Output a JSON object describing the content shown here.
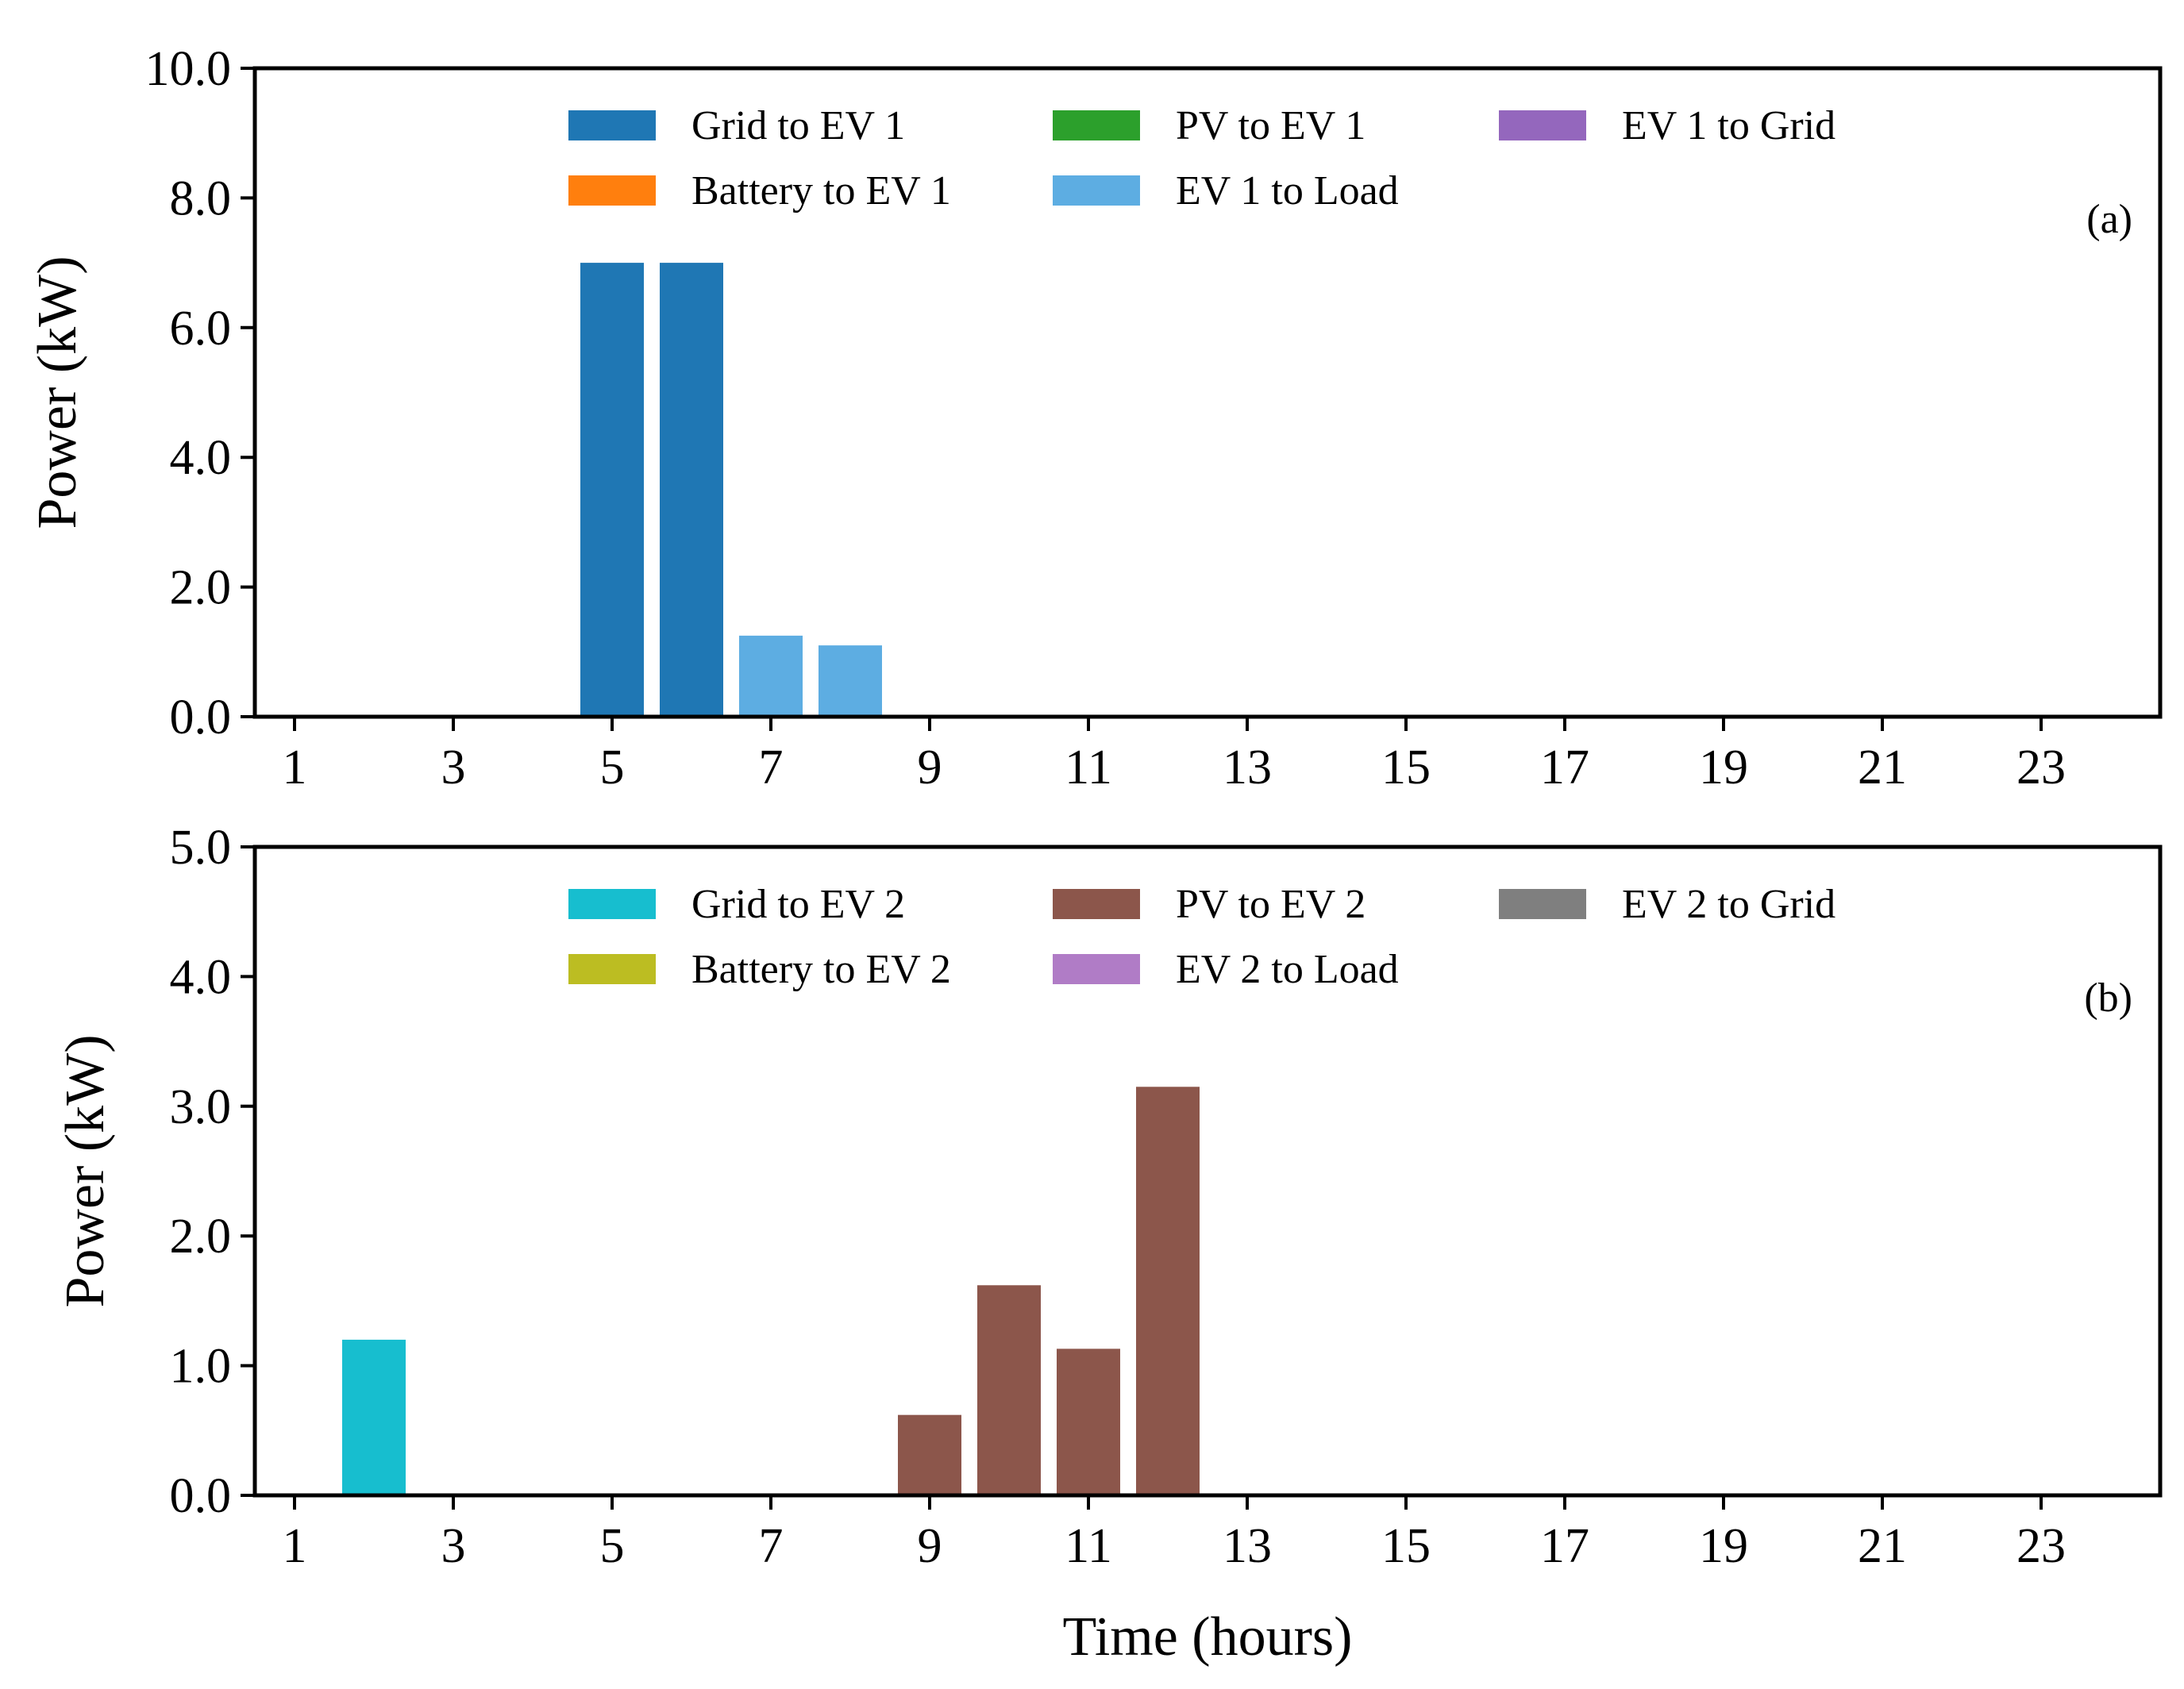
{
  "figure": {
    "xlabel": "Time (hours)"
  },
  "chart_data": [
    {
      "type": "bar",
      "stacked": true,
      "panel_label": "(a)",
      "ylabel": "Power (kW)",
      "ylim": [
        0,
        10
      ],
      "yticks": [
        0,
        2,
        4,
        6,
        8,
        10
      ],
      "ytick_labels": [
        "0.0",
        "2.0",
        "4.0",
        "6.0",
        "8.0",
        "10.0"
      ],
      "xlim": [
        0.5,
        24.5
      ],
      "xticks": [
        1,
        3,
        5,
        7,
        9,
        11,
        13,
        15,
        17,
        19,
        21,
        23
      ],
      "xtick_labels": [
        "1",
        "3",
        "5",
        "7",
        "9",
        "11",
        "13",
        "15",
        "17",
        "19",
        "21",
        "23"
      ],
      "x": [
        1,
        2,
        3,
        4,
        5,
        6,
        7,
        8,
        9,
        10,
        11,
        12,
        13,
        14,
        15,
        16,
        17,
        18,
        19,
        20,
        21,
        22,
        23,
        24
      ],
      "legend_position": "top-center",
      "series": [
        {
          "name": "Grid to EV 1",
          "color": "#1f77b4",
          "values": [
            0,
            0,
            0,
            0,
            7.0,
            7.0,
            0,
            0,
            0,
            0,
            0,
            0,
            0,
            0,
            0,
            0,
            0,
            0,
            0,
            0,
            0,
            0,
            0,
            0
          ]
        },
        {
          "name": "Battery to EV 1",
          "color": "#ff7f0e",
          "values": [
            0,
            0,
            0,
            0,
            0,
            0,
            0,
            0,
            0,
            0,
            0,
            0,
            0,
            0,
            0,
            0,
            0,
            0,
            0,
            0,
            0,
            0,
            0,
            0
          ]
        },
        {
          "name": "PV to EV 1",
          "color": "#2ca02c",
          "values": [
            0,
            0,
            0,
            0,
            0,
            0,
            0,
            0,
            0,
            0,
            0,
            0,
            0,
            0,
            0,
            0,
            0,
            0,
            0,
            0,
            0,
            0,
            0,
            0
          ]
        },
        {
          "name": "EV 1 to Load",
          "color": "#5dade2",
          "values": [
            0,
            0,
            0,
            0,
            0,
            0,
            1.25,
            1.1,
            0,
            0,
            0,
            0,
            0,
            0,
            0,
            0,
            0,
            0,
            0,
            0,
            0,
            0,
            0,
            0
          ]
        },
        {
          "name": "EV 1 to Grid",
          "color": "#9467bd",
          "values": [
            0,
            0,
            0,
            0,
            0,
            0,
            0,
            0,
            0,
            0,
            0,
            0,
            0,
            0,
            0,
            0,
            0,
            0,
            0,
            0,
            0,
            0,
            0,
            0
          ]
        }
      ]
    },
    {
      "type": "bar",
      "stacked": true,
      "panel_label": "(b)",
      "ylabel": "Power (kW)",
      "ylim": [
        0,
        5
      ],
      "yticks": [
        0,
        1,
        2,
        3,
        4,
        5
      ],
      "ytick_labels": [
        "0.0",
        "1.0",
        "2.0",
        "3.0",
        "4.0",
        "5.0"
      ],
      "xlim": [
        0.5,
        24.5
      ],
      "xticks": [
        1,
        3,
        5,
        7,
        9,
        11,
        13,
        15,
        17,
        19,
        21,
        23
      ],
      "xtick_labels": [
        "1",
        "3",
        "5",
        "7",
        "9",
        "11",
        "13",
        "15",
        "17",
        "19",
        "21",
        "23"
      ],
      "x": [
        1,
        2,
        3,
        4,
        5,
        6,
        7,
        8,
        9,
        10,
        11,
        12,
        13,
        14,
        15,
        16,
        17,
        18,
        19,
        20,
        21,
        22,
        23,
        24
      ],
      "legend_position": "top-center",
      "series": [
        {
          "name": "Grid to EV 2",
          "color": "#17becf",
          "values": [
            0,
            1.2,
            0,
            0,
            0,
            0,
            0,
            0,
            0,
            0,
            0,
            0,
            0,
            0,
            0,
            0,
            0,
            0,
            0,
            0,
            0,
            0,
            0,
            0
          ]
        },
        {
          "name": "Battery to EV 2",
          "color": "#bcbd22",
          "values": [
            0,
            0,
            0,
            0,
            0,
            0,
            0,
            0,
            0,
            0,
            0,
            0,
            0,
            0,
            0,
            0,
            0,
            0,
            0,
            0,
            0,
            0,
            0,
            0
          ]
        },
        {
          "name": "PV to EV 2",
          "color": "#8c564b",
          "values": [
            0,
            0,
            0,
            0,
            0,
            0,
            0,
            0,
            0.62,
            1.62,
            1.13,
            3.15,
            0,
            0,
            0,
            0,
            0,
            0,
            0,
            0,
            0,
            0,
            0,
            0
          ]
        },
        {
          "name": "EV 2 to Load",
          "color": "#b07cc6",
          "values": [
            0,
            0,
            0,
            0,
            0,
            0,
            0,
            0,
            0,
            0,
            0,
            0,
            0,
            0,
            0,
            0,
            0,
            0,
            0,
            0,
            0,
            0,
            0,
            0
          ]
        },
        {
          "name": "EV 2 to Grid",
          "color": "#7f7f7f",
          "values": [
            0,
            0,
            0,
            0,
            0,
            0,
            0,
            0,
            0,
            0,
            0,
            0,
            0,
            0,
            0,
            0,
            0,
            0,
            0,
            0,
            0,
            0,
            0,
            0
          ]
        }
      ]
    }
  ]
}
